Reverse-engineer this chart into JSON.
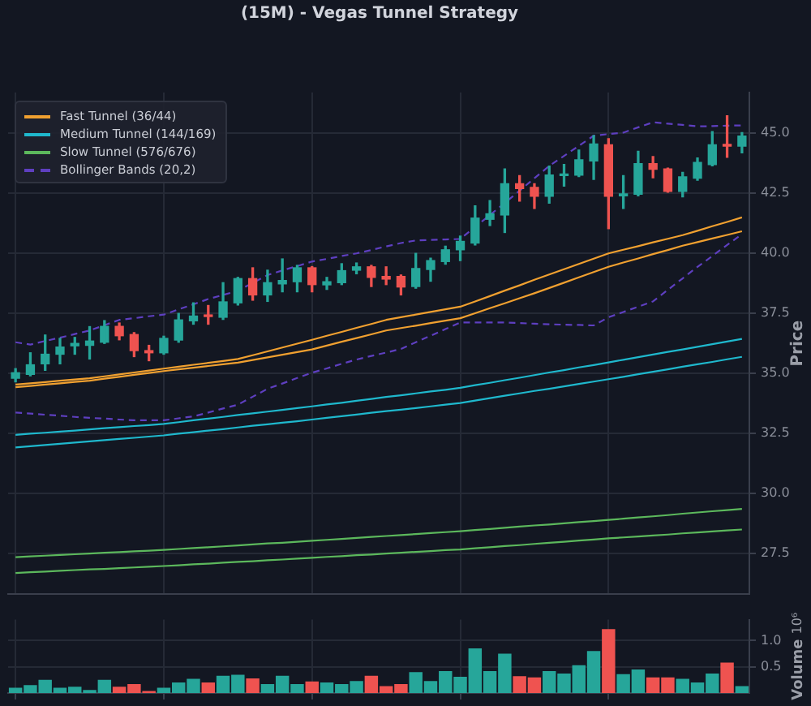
{
  "chart_data": [
    {
      "type": "candlestick",
      "title": "(15M) - Vegas Tunnel Strategy",
      "ylabel": "Price",
      "categories": [
        null,
        null,
        null,
        null,
        null,
        null,
        null,
        null,
        null,
        null,
        null,
        null,
        null,
        null,
        null,
        null,
        null,
        null,
        null,
        null,
        null,
        null,
        null,
        null,
        null,
        null,
        null,
        null,
        null,
        null,
        null,
        null,
        null,
        null,
        null,
        null,
        null,
        null,
        null,
        null,
        null,
        null,
        null,
        null,
        null,
        null,
        null,
        null,
        null,
        null
      ],
      "ohlc": [
        [
          34.8,
          35.2,
          34.65,
          35.03
        ],
        [
          34.96,
          35.86,
          34.9,
          35.36
        ],
        [
          35.4,
          36.6,
          35.13,
          35.8
        ],
        [
          35.8,
          36.46,
          35.4,
          36.1
        ],
        [
          36.15,
          36.5,
          35.8,
          36.25
        ],
        [
          36.17,
          36.95,
          35.6,
          36.35
        ],
        [
          36.3,
          37.2,
          36.25,
          36.96
        ],
        [
          36.96,
          37.1,
          36.4,
          36.57
        ],
        [
          36.62,
          36.7,
          35.7,
          35.95
        ],
        [
          35.95,
          36.17,
          35.53,
          35.86
        ],
        [
          35.86,
          36.55,
          35.8,
          36.46
        ],
        [
          36.39,
          37.5,
          36.3,
          37.23
        ],
        [
          37.19,
          37.94,
          37.05,
          37.39
        ],
        [
          37.43,
          37.83,
          37.05,
          37.37
        ],
        [
          37.34,
          38.78,
          37.25,
          37.98
        ],
        [
          37.94,
          39.0,
          37.85,
          38.95
        ],
        [
          38.95,
          39.4,
          38.05,
          38.27
        ],
        [
          38.27,
          39.3,
          38.0,
          38.78
        ],
        [
          38.73,
          39.77,
          38.4,
          38.87
        ],
        [
          38.82,
          39.5,
          38.4,
          39.4
        ],
        [
          39.4,
          39.45,
          38.4,
          38.7
        ],
        [
          38.69,
          39.0,
          38.5,
          38.82
        ],
        [
          38.78,
          39.57,
          38.7,
          39.28
        ],
        [
          39.3,
          39.6,
          39.15,
          39.44
        ],
        [
          39.44,
          39.5,
          38.62,
          39.0
        ],
        [
          39.04,
          39.44,
          38.7,
          38.93
        ],
        [
          39.04,
          39.1,
          38.27,
          38.6
        ],
        [
          38.62,
          40.0,
          38.55,
          39.37
        ],
        [
          39.33,
          39.8,
          38.84,
          39.7
        ],
        [
          39.66,
          40.3,
          39.55,
          40.15
        ],
        [
          40.15,
          40.72,
          39.7,
          40.5
        ],
        [
          40.43,
          41.98,
          40.35,
          41.47
        ],
        [
          41.42,
          42.2,
          41.16,
          41.65
        ],
        [
          41.6,
          43.52,
          40.87,
          42.9
        ],
        [
          42.9,
          43.24,
          42.18,
          42.7
        ],
        [
          42.75,
          42.9,
          41.87,
          42.38
        ],
        [
          42.38,
          43.64,
          42.09,
          43.26
        ],
        [
          43.24,
          43.7,
          42.8,
          43.3
        ],
        [
          43.26,
          44.3,
          43.2,
          43.9
        ],
        [
          43.85,
          44.9,
          43.08,
          44.56
        ],
        [
          44.52,
          44.78,
          41.03,
          42.38
        ],
        [
          42.4,
          43.24,
          41.87,
          42.48
        ],
        [
          42.46,
          44.25,
          42.4,
          43.74
        ],
        [
          43.74,
          44.03,
          43.15,
          43.5
        ],
        [
          43.52,
          43.55,
          42.55,
          42.58
        ],
        [
          42.58,
          43.37,
          42.35,
          43.19
        ],
        [
          43.13,
          43.97,
          43.05,
          43.79
        ],
        [
          43.7,
          45.07,
          43.65,
          44.52
        ],
        [
          44.52,
          45.73,
          44.0,
          44.47
        ],
        [
          44.47,
          45.03,
          44.19,
          44.89
        ]
      ],
      "colors": [
        "#26a69a",
        "#26a69a",
        "#26a69a",
        "#26a69a",
        "#26a69a",
        "#26a69a",
        "#26a69a",
        "#ef5350",
        "#ef5350",
        "#ef5350",
        "#26a69a",
        "#26a69a",
        "#26a69a",
        "#ef5350",
        "#26a69a",
        "#26a69a",
        "#ef5350",
        "#26a69a",
        "#26a69a",
        "#26a69a",
        "#ef5350",
        "#26a69a",
        "#26a69a",
        "#26a69a",
        "#ef5350",
        "#ef5350",
        "#ef5350",
        "#26a69a",
        "#26a69a",
        "#26a69a",
        "#26a69a",
        "#26a69a",
        "#26a69a",
        "#26a69a",
        "#ef5350",
        "#ef5350",
        "#26a69a",
        "#26a69a",
        "#26a69a",
        "#26a69a",
        "#ef5350",
        "#26a69a",
        "#26a69a",
        "#ef5350",
        "#ef5350",
        "#26a69a",
        "#26a69a",
        "#26a69a",
        "#ef5350",
        "#26a69a"
      ],
      "series": [
        {
          "name": "Fast Tunnel (36/44)",
          "type": "line",
          "color": "#f0a030",
          "values": [
            34.54,
            34.59,
            34.64,
            34.7,
            34.75,
            34.8,
            34.88,
            34.96,
            35.04,
            35.12,
            35.2,
            35.28,
            35.36,
            35.44,
            35.52,
            35.6,
            35.76,
            35.92,
            36.08,
            36.24,
            36.4,
            36.57,
            36.73,
            36.9,
            37.06,
            37.23,
            37.34,
            37.45,
            37.56,
            37.67,
            37.78,
            38.0,
            38.22,
            38.45,
            38.67,
            38.9,
            39.12,
            39.34,
            39.56,
            39.78,
            40.0,
            40.15,
            40.3,
            40.46,
            40.61,
            40.76,
            40.94,
            41.13,
            41.31,
            41.5
          ]
        },
        {
          "type": "line",
          "color": "#f0a030",
          "values": [
            34.43,
            34.48,
            34.54,
            34.59,
            34.65,
            34.7,
            34.78,
            34.86,
            34.94,
            35.02,
            35.1,
            35.17,
            35.24,
            35.31,
            35.38,
            35.45,
            35.56,
            35.67,
            35.78,
            35.89,
            36.0,
            36.16,
            36.32,
            36.47,
            36.63,
            36.79,
            36.89,
            36.99,
            37.1,
            37.2,
            37.3,
            37.51,
            37.72,
            37.92,
            38.13,
            38.34,
            38.56,
            38.78,
            39.0,
            39.22,
            39.44,
            39.62,
            39.79,
            39.97,
            40.14,
            40.32,
            40.47,
            40.62,
            40.77,
            40.92
          ]
        },
        {
          "name": "Medium Tunnel (144/169)",
          "type": "line",
          "color": "#1fb8cd",
          "values": [
            32.44,
            32.49,
            32.53,
            32.58,
            32.62,
            32.67,
            32.72,
            32.76,
            32.81,
            32.85,
            32.9,
            32.97,
            33.05,
            33.12,
            33.19,
            33.27,
            33.34,
            33.41,
            33.48,
            33.56,
            33.63,
            33.71,
            33.78,
            33.86,
            33.94,
            34.02,
            34.09,
            34.17,
            34.25,
            34.32,
            34.4,
            34.51,
            34.61,
            34.72,
            34.82,
            34.93,
            35.04,
            35.14,
            35.25,
            35.35,
            35.46,
            35.57,
            35.68,
            35.79,
            35.9,
            36.0,
            36.11,
            36.22,
            36.33,
            36.44
          ]
        },
        {
          "type": "line",
          "color": "#1fb8cd",
          "values": [
            31.92,
            31.97,
            32.02,
            32.07,
            32.12,
            32.17,
            32.22,
            32.27,
            32.32,
            32.37,
            32.42,
            32.49,
            32.55,
            32.62,
            32.68,
            32.75,
            32.82,
            32.88,
            32.95,
            33.01,
            33.08,
            33.15,
            33.22,
            33.29,
            33.36,
            33.43,
            33.49,
            33.56,
            33.63,
            33.7,
            33.77,
            33.87,
            33.97,
            34.07,
            34.17,
            34.27,
            34.36,
            34.46,
            34.56,
            34.66,
            34.76,
            34.86,
            34.97,
            35.07,
            35.17,
            35.28,
            35.38,
            35.48,
            35.59,
            35.69
          ]
        },
        {
          "name": "Slow Tunnel (576/676)",
          "type": "line",
          "color": "#5cb85c",
          "values": [
            27.35,
            27.38,
            27.41,
            27.44,
            27.47,
            27.5,
            27.53,
            27.56,
            27.59,
            27.62,
            27.65,
            27.69,
            27.73,
            27.76,
            27.8,
            27.84,
            27.88,
            27.92,
            27.95,
            27.99,
            28.03,
            28.07,
            28.11,
            28.15,
            28.19,
            28.23,
            28.27,
            28.31,
            28.35,
            28.39,
            28.43,
            28.48,
            28.52,
            28.57,
            28.62,
            28.67,
            28.71,
            28.76,
            28.81,
            28.85,
            28.9,
            28.95,
            29.0,
            29.05,
            29.1,
            29.16,
            29.21,
            29.26,
            29.31,
            29.36
          ]
        },
        {
          "type": "line",
          "color": "#5cb85c",
          "values": [
            26.69,
            26.72,
            26.75,
            26.78,
            26.81,
            26.84,
            26.86,
            26.89,
            26.92,
            26.95,
            26.98,
            27.01,
            27.05,
            27.08,
            27.12,
            27.15,
            27.18,
            27.22,
            27.25,
            27.29,
            27.32,
            27.36,
            27.39,
            27.43,
            27.46,
            27.5,
            27.53,
            27.57,
            27.6,
            27.64,
            27.67,
            27.72,
            27.76,
            27.81,
            27.85,
            27.9,
            27.95,
            27.99,
            28.04,
            28.08,
            28.13,
            28.17,
            28.21,
            28.25,
            28.29,
            28.34,
            28.38,
            28.42,
            28.46,
            28.5
          ]
        },
        {
          "name": "Bollinger Bands (20,2)",
          "type": "line",
          "color": "#5e3fc0",
          "line_style": "dashed",
          "values": [
            36.3,
            36.2,
            36.35,
            36.49,
            36.64,
            36.79,
            37.01,
            37.23,
            37.3,
            37.38,
            37.45,
            37.67,
            37.88,
            38.1,
            38.27,
            38.44,
            38.77,
            39.1,
            39.29,
            39.47,
            39.66,
            39.77,
            39.89,
            40.0,
            40.14,
            40.29,
            40.43,
            40.54,
            40.56,
            40.58,
            40.6,
            41.1,
            41.6,
            42.1,
            42.61,
            43.13,
            43.64,
            44.06,
            44.48,
            44.9,
            44.97,
            45.03,
            45.25,
            45.46,
            45.4,
            45.35,
            45.29,
            45.3,
            45.32,
            45.33
          ]
        },
        {
          "type": "line",
          "color": "#5e3fc0",
          "line_style": "dashed",
          "values": [
            33.37,
            33.33,
            33.28,
            33.24,
            33.19,
            33.15,
            33.12,
            33.08,
            33.05,
            33.05,
            33.05,
            33.13,
            33.21,
            33.37,
            33.54,
            33.7,
            34.03,
            34.36,
            34.58,
            34.81,
            35.03,
            35.21,
            35.4,
            35.58,
            35.73,
            35.87,
            36.02,
            36.3,
            36.57,
            36.85,
            37.12,
            37.12,
            37.12,
            37.12,
            37.1,
            37.07,
            37.05,
            37.03,
            37.02,
            37.0,
            37.34,
            37.56,
            37.78,
            38.0,
            38.48,
            38.96,
            39.44,
            39.89,
            40.35,
            40.8
          ]
        }
      ],
      "ylim": [
        25.8,
        46.7
      ],
      "yticks": [
        27.5,
        {
          "value": 30,
          "label": "30.0"
        },
        32.5,
        {
          "value": 35,
          "label": "35.0"
        },
        37.5,
        {
          "value": 40,
          "label": "40.0"
        },
        42.5,
        {
          "value": 45,
          "label": "45.0"
        }
      ],
      "grid": true,
      "legend": "top left",
      "marker": "none",
      "tick_labels": "y"
    },
    {
      "type": "bar",
      "ylabel": "Volume",
      "annotations": [
        "10⁶"
      ],
      "categories": [
        null,
        null,
        null,
        null,
        null,
        null,
        null,
        null,
        null,
        null,
        null,
        null,
        null,
        null,
        null,
        null,
        null,
        null,
        null,
        null,
        null,
        null,
        null,
        null,
        null,
        null,
        null,
        null,
        null,
        null,
        null,
        null,
        null,
        null,
        null,
        null,
        null,
        null,
        null,
        null,
        null,
        null,
        null,
        null,
        null,
        null,
        null,
        null,
        null,
        null
      ],
      "values": [
        0.1,
        0.15,
        0.25,
        0.1,
        0.12,
        0.06,
        0.25,
        0.12,
        0.17,
        0.04,
        0.1,
        0.2,
        0.27,
        0.2,
        0.33,
        0.35,
        0.28,
        0.17,
        0.33,
        0.17,
        0.22,
        0.2,
        0.17,
        0.23,
        0.33,
        0.13,
        0.17,
        0.4,
        0.23,
        0.42,
        0.31,
        0.85,
        0.42,
        0.75,
        0.32,
        0.3,
        0.42,
        0.37,
        0.53,
        0.8,
        1.22,
        0.36,
        0.45,
        0.3,
        0.3,
        0.27,
        0.2,
        0.37,
        0.58,
        0.13
      ],
      "colors": [
        "#26a69a",
        "#26a69a",
        "#26a69a",
        "#26a69a",
        "#26a69a",
        "#26a69a",
        "#26a69a",
        "#ef5350",
        "#ef5350",
        "#ef5350",
        "#26a69a",
        "#26a69a",
        "#26a69a",
        "#ef5350",
        "#26a69a",
        "#26a69a",
        "#ef5350",
        "#26a69a",
        "#26a69a",
        "#26a69a",
        "#ef5350",
        "#26a69a",
        "#26a69a",
        "#26a69a",
        "#ef5350",
        "#ef5350",
        "#ef5350",
        "#26a69a",
        "#26a69a",
        "#26a69a",
        "#26a69a",
        "#26a69a",
        "#26a69a",
        "#26a69a",
        "#ef5350",
        "#ef5350",
        "#26a69a",
        "#26a69a",
        "#26a69a",
        "#26a69a",
        "#ef5350",
        "#26a69a",
        "#26a69a",
        "#ef5350",
        "#ef5350",
        "#26a69a",
        "#26a69a",
        "#26a69a",
        "#ef5350",
        "#26a69a"
      ],
      "ylim": [
        0,
        1.4
      ],
      "yticks": [
        0.5,
        {
          "value": 1,
          "label": "1.0"
        }
      ],
      "grid": true,
      "tick_labels": "y"
    }
  ]
}
